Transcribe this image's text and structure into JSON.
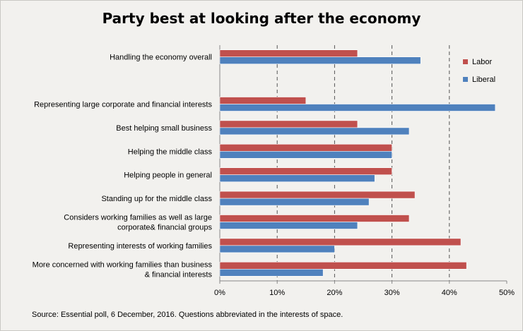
{
  "chart_data": {
    "type": "bar",
    "orientation": "horizontal",
    "title": "Party best at looking after the economy",
    "categories": [
      [
        "Handling the economy overall"
      ],
      [
        ""
      ],
      [
        "Representing large corporate and financial interests"
      ],
      [
        "Best helping small business"
      ],
      [
        "Helping the middle class"
      ],
      [
        "Helping people in general"
      ],
      [
        "Standing up for the middle class"
      ],
      [
        "Considers working families as well as large",
        "corporate& financial groups"
      ],
      [
        "Representing interests of working families"
      ],
      [
        "More concerned with working families than business",
        "& financial interests"
      ]
    ],
    "series": [
      {
        "name": "Labor",
        "color": "#c0504d",
        "values": [
          24,
          null,
          15,
          24,
          30,
          30,
          34,
          33,
          42,
          43
        ]
      },
      {
        "name": "Liberal",
        "color": "#4f81bd",
        "values": [
          35,
          null,
          48,
          33,
          30,
          27,
          26,
          24,
          20,
          18
        ]
      }
    ],
    "xlim": [
      0,
      50
    ],
    "xticks": [
      0,
      10,
      20,
      30,
      40,
      50
    ],
    "tick_format": "%",
    "grid": "vertical dashed",
    "legend": "top-right"
  },
  "source": "Source: Essential poll, 6 December,  2016. Questions abbreviated in the interests of space."
}
